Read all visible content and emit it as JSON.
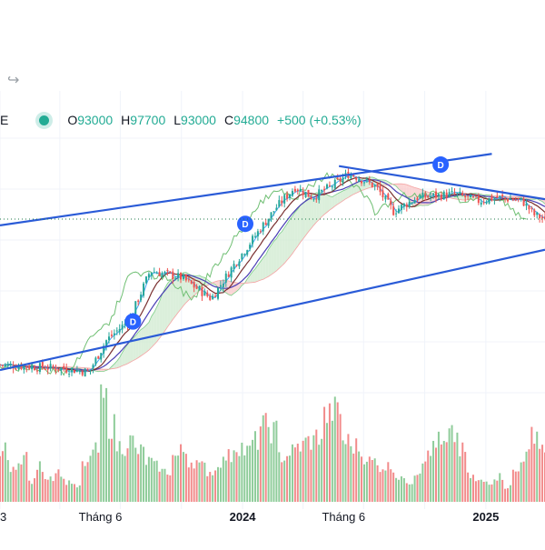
{
  "header": {
    "symbol_fragment": "E",
    "ohlc": [
      {
        "key": "O",
        "value": "93000"
      },
      {
        "key": "H",
        "value": "97700"
      },
      {
        "key": "L",
        "value": "93000"
      },
      {
        "key": "C",
        "value": "94800"
      }
    ],
    "change": "+500 (+0.53%)"
  },
  "colors": {
    "up": "#26a69a",
    "down": "#ef5350",
    "up_volume": "#8fcc9a",
    "down_volume": "#f28b8b",
    "trendline": "#2a5bd7",
    "kijun": "#7a2f2f",
    "tenkan": "#42a5f5",
    "ma": "#4a3fb5",
    "chikou": "#6fbf73",
    "cloud_bull": "#cfe9cf",
    "cloud_bear": "#f9c8c8",
    "marker": "#2962ff"
  },
  "chart_data": {
    "type": "candlestick",
    "x_tick_labels": [
      "3",
      "Tháng 6",
      "2024",
      "Tháng 6",
      "2025"
    ],
    "dividend_marker_label": "D",
    "dividend_markers": [
      {
        "date": "2023-07-20",
        "price": 55000
      },
      {
        "date": "2024-01-05",
        "price": 83000
      },
      {
        "date": "2024-10-25",
        "price": 100000
      }
    ],
    "last_close": 94800,
    "price_anchors": [
      {
        "date": "2023-01-01",
        "close": 53000
      },
      {
        "date": "2023-04-01",
        "close": 52000
      },
      {
        "date": "2023-05-15",
        "close": 51000
      },
      {
        "date": "2023-06-10",
        "close": 60000
      },
      {
        "date": "2023-07-15",
        "close": 66000
      },
      {
        "date": "2023-08-15",
        "close": 80000
      },
      {
        "date": "2023-10-01",
        "close": 78000
      },
      {
        "date": "2023-11-15",
        "close": 72000
      },
      {
        "date": "2023-12-20",
        "close": 82000
      },
      {
        "date": "2024-01-20",
        "close": 90000
      },
      {
        "date": "2024-02-20",
        "close": 98000
      },
      {
        "date": "2024-03-20",
        "close": 104000
      },
      {
        "date": "2024-04-15",
        "close": 101000
      },
      {
        "date": "2024-05-20",
        "close": 105000
      },
      {
        "date": "2024-06-10",
        "close": 108000
      },
      {
        "date": "2024-07-20",
        "close": 104000
      },
      {
        "date": "2024-08-15",
        "close": 97000
      },
      {
        "date": "2024-09-20",
        "close": 101000
      },
      {
        "date": "2024-11-15",
        "close": 102000
      },
      {
        "date": "2024-12-20",
        "close": 100000
      },
      {
        "date": "2025-01-20",
        "close": 101000
      },
      {
        "date": "2025-02-25",
        "close": 100000
      },
      {
        "date": "2025-03-15",
        "close": 96000
      },
      {
        "date": "2025-03-31",
        "close": 94800
      }
    ],
    "volume_profile": [
      0.5,
      0.3,
      0.45,
      0.2,
      0.35,
      0.25,
      0.3,
      0.2,
      0.15,
      0.35,
      0.5,
      1.0,
      0.75,
      0.55,
      0.6,
      0.5,
      0.4,
      0.35,
      0.3,
      0.45,
      0.5,
      0.4,
      0.35,
      0.3,
      0.4,
      0.45,
      0.55,
      0.5,
      0.6,
      0.75,
      0.7,
      0.45,
      0.5,
      0.55,
      0.6,
      0.65,
      0.85,
      0.9,
      0.6,
      0.55,
      0.45,
      0.4,
      0.35,
      0.35,
      0.25,
      0.2,
      0.3,
      0.45,
      0.6,
      0.55,
      0.65,
      0.5,
      0.25,
      0.2,
      0.2,
      0.25,
      0.15,
      0.3,
      0.45,
      0.7,
      0.55
    ],
    "x_range": [
      "2023-01-01",
      "2025-03-31"
    ],
    "y_range_visible": [
      45000,
      118000
    ],
    "indicators": [
      "Ichimoku cloud",
      "moving average",
      "trend channel lines"
    ]
  }
}
